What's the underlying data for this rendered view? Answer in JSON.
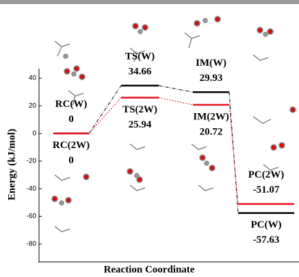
{
  "chart_data": {
    "type": "energy-profile",
    "ylabel": "Energy (kJ/mol)",
    "xlabel": "Reaction Coordinate",
    "ylim": [
      -93,
      47
    ],
    "yticks": [
      -80,
      -60,
      -40,
      -20,
      0,
      20,
      40
    ],
    "series": [
      {
        "color": "#000000",
        "labels": [
          "RC(W)",
          "TS(W)",
          "IM(W)",
          "PC(W)"
        ],
        "values": [
          0,
          34.66,
          29.93,
          -57.63
        ]
      },
      {
        "color": "#e8141c",
        "labels": [
          "RC(2W)",
          "TS(2W)",
          "IM(2W)",
          "PC(2W)"
        ],
        "values": [
          0,
          25.94,
          20.72,
          -51.07
        ]
      }
    ]
  }
}
